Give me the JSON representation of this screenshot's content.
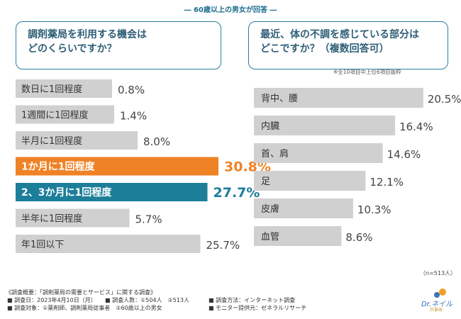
{
  "header": "― 60歳以上の男女が回答 ―",
  "left_question": [
    "調剤薬局を利用する機会は",
    "どのくらいですか？"
  ],
  "right_question": [
    "最近、体の不調を感じている部分は",
    "どこですか？（複数回答可）"
  ],
  "note": "※全10項目中上位6項目抜粋",
  "sample": "（n=513人）",
  "colors": {
    "gray": "#d0d0d0",
    "orange": "#f08226",
    "teal": "#1d7e9a",
    "highlight_text": "#ffffff"
  },
  "chart_data": [
    {
      "type": "bar",
      "orientation": "horizontal",
      "title": "調剤薬局を利用する機会はどのくらいですか？",
      "categories": [
        "数日に1回程度",
        "1週間に1回程度",
        "半月に1回程度",
        "1か月に1回程度",
        "2、3か月に1回程度",
        "半年に1回程度",
        "年1回以下"
      ],
      "values": [
        0.8,
        1.4,
        8.0,
        30.8,
        27.7,
        5.7,
        25.7
      ],
      "labels": [
        "0.8%",
        "1.4%",
        "8.0%",
        "30.8%",
        "27.7%",
        "5.7%",
        "25.7%"
      ],
      "highlight": [
        "none",
        "none",
        "none",
        "orange",
        "teal",
        "none",
        "none"
      ],
      "unit": "%"
    },
    {
      "type": "bar",
      "orientation": "horizontal",
      "title": "最近、体の不調を感じている部分はどこですか？（複数回答可）",
      "categories": [
        "背中、腰",
        "内臓",
        "首、肩",
        "足",
        "皮膚",
        "血管"
      ],
      "values": [
        20.5,
        16.4,
        14.6,
        12.1,
        10.3,
        8.6
      ],
      "labels": [
        "20.5%",
        "16.4%",
        "14.6%",
        "12.1%",
        "10.3%",
        "8.6%"
      ],
      "unit": "%"
    }
  ],
  "footer": {
    "title": "《調査概要：「調剤薬局の需要とサービス」に関する調査》",
    "date": "■ 調査日：2023年4月10日（月）",
    "count": "■ 調査人数：①504人　②513人",
    "method": "■ 調査方法：インターネット調査",
    "target": "■ 調査対象：①薬剤師、調剤薬局従事者　②60歳以上の男女",
    "provider": "■ モニター提供元：ゼネラルリサーチ"
  },
  "logo": {
    "text": "Dr.ネイル",
    "sub": "爪革命"
  }
}
